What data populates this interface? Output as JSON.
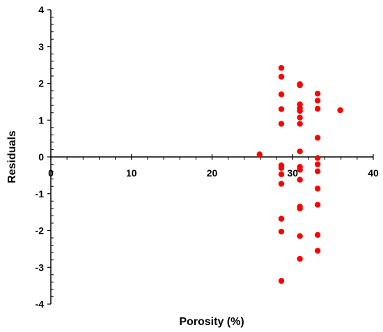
{
  "chart_data": {
    "type": "scatter",
    "xlabel": "Porosity (%)",
    "ylabel": "Residuals",
    "xlim": [
      0,
      40
    ],
    "ylim": [
      -4,
      4
    ],
    "x_ticks": [
      0,
      10,
      20,
      30,
      40
    ],
    "y_ticks": [
      4,
      3,
      2,
      1,
      0,
      -1,
      -2,
      -3,
      -4
    ],
    "x_tick_labels": [
      "0",
      "10",
      "20",
      "30",
      "40"
    ],
    "y_tick_labels": [
      "4",
      "3",
      "2",
      "1",
      "0",
      "-1",
      "-2",
      "-3",
      "-4"
    ],
    "grid": false,
    "legend": "none",
    "marker_color": "#ff0000",
    "series": [
      {
        "points": [
          {
            "x": 25.9,
            "y": 0.07
          },
          {
            "x": 28.6,
            "y": 2.42
          },
          {
            "x": 28.6,
            "y": 2.18
          },
          {
            "x": 28.6,
            "y": 1.7
          },
          {
            "x": 28.6,
            "y": 1.3
          },
          {
            "x": 28.6,
            "y": 0.9
          },
          {
            "x": 28.6,
            "y": -0.23
          },
          {
            "x": 28.6,
            "y": -0.3
          },
          {
            "x": 28.6,
            "y": -0.47
          },
          {
            "x": 28.6,
            "y": -0.73
          },
          {
            "x": 28.6,
            "y": -1.68
          },
          {
            "x": 28.6,
            "y": -2.03
          },
          {
            "x": 28.6,
            "y": -3.37
          },
          {
            "x": 30.9,
            "y": 1.98
          },
          {
            "x": 30.9,
            "y": 1.95
          },
          {
            "x": 30.9,
            "y": 1.43
          },
          {
            "x": 30.9,
            "y": 1.33
          },
          {
            "x": 30.9,
            "y": 1.25
          },
          {
            "x": 30.9,
            "y": 1.07
          },
          {
            "x": 30.9,
            "y": 0.9
          },
          {
            "x": 30.9,
            "y": 0.15
          },
          {
            "x": 30.9,
            "y": -0.27
          },
          {
            "x": 30.9,
            "y": -0.35
          },
          {
            "x": 30.9,
            "y": -0.62
          },
          {
            "x": 30.9,
            "y": -1.35
          },
          {
            "x": 30.9,
            "y": -1.4
          },
          {
            "x": 30.9,
            "y": -2.15
          },
          {
            "x": 30.9,
            "y": -2.77
          },
          {
            "x": 33.1,
            "y": 1.72
          },
          {
            "x": 33.1,
            "y": 1.53
          },
          {
            "x": 33.1,
            "y": 1.31
          },
          {
            "x": 33.1,
            "y": 0.52
          },
          {
            "x": 33.1,
            "y": -0.03
          },
          {
            "x": 33.1,
            "y": -0.2
          },
          {
            "x": 33.1,
            "y": -0.39
          },
          {
            "x": 33.1,
            "y": -0.86
          },
          {
            "x": 33.1,
            "y": -1.3
          },
          {
            "x": 33.1,
            "y": -2.12
          },
          {
            "x": 33.1,
            "y": -2.55
          },
          {
            "x": 35.9,
            "y": 1.27
          }
        ]
      }
    ]
  }
}
